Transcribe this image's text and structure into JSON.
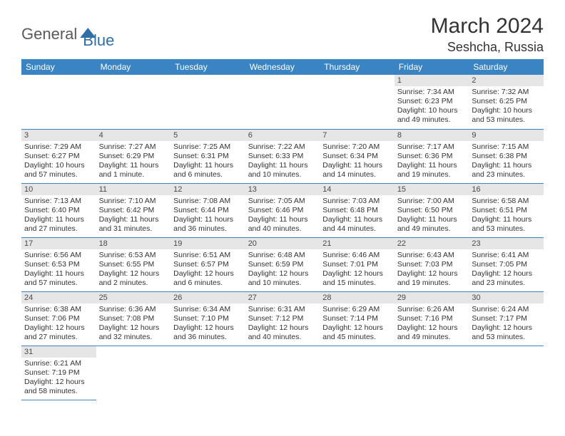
{
  "brand": {
    "part1": "General",
    "part2": "Blue",
    "text_color_1": "#5a5a5a",
    "text_color_2": "#2f6fa8"
  },
  "title": {
    "month": "March 2024",
    "location": "Seshcha, Russia"
  },
  "theme": {
    "header_bg": "#3a84c4",
    "header_text": "#ffffff",
    "daynum_bg": "#e6e6e6",
    "row_border": "#3a84c4",
    "body_text": "#333333"
  },
  "day_headers": [
    "Sunday",
    "Monday",
    "Tuesday",
    "Wednesday",
    "Thursday",
    "Friday",
    "Saturday"
  ],
  "weeks": [
    [
      null,
      null,
      null,
      null,
      null,
      {
        "n": "1",
        "sr": "Sunrise: 7:34 AM",
        "ss": "Sunset: 6:23 PM",
        "d1": "Daylight: 10 hours",
        "d2": "and 49 minutes."
      },
      {
        "n": "2",
        "sr": "Sunrise: 7:32 AM",
        "ss": "Sunset: 6:25 PM",
        "d1": "Daylight: 10 hours",
        "d2": "and 53 minutes."
      }
    ],
    [
      {
        "n": "3",
        "sr": "Sunrise: 7:29 AM",
        "ss": "Sunset: 6:27 PM",
        "d1": "Daylight: 10 hours",
        "d2": "and 57 minutes."
      },
      {
        "n": "4",
        "sr": "Sunrise: 7:27 AM",
        "ss": "Sunset: 6:29 PM",
        "d1": "Daylight: 11 hours",
        "d2": "and 1 minute."
      },
      {
        "n": "5",
        "sr": "Sunrise: 7:25 AM",
        "ss": "Sunset: 6:31 PM",
        "d1": "Daylight: 11 hours",
        "d2": "and 6 minutes."
      },
      {
        "n": "6",
        "sr": "Sunrise: 7:22 AM",
        "ss": "Sunset: 6:33 PM",
        "d1": "Daylight: 11 hours",
        "d2": "and 10 minutes."
      },
      {
        "n": "7",
        "sr": "Sunrise: 7:20 AM",
        "ss": "Sunset: 6:34 PM",
        "d1": "Daylight: 11 hours",
        "d2": "and 14 minutes."
      },
      {
        "n": "8",
        "sr": "Sunrise: 7:17 AM",
        "ss": "Sunset: 6:36 PM",
        "d1": "Daylight: 11 hours",
        "d2": "and 19 minutes."
      },
      {
        "n": "9",
        "sr": "Sunrise: 7:15 AM",
        "ss": "Sunset: 6:38 PM",
        "d1": "Daylight: 11 hours",
        "d2": "and 23 minutes."
      }
    ],
    [
      {
        "n": "10",
        "sr": "Sunrise: 7:13 AM",
        "ss": "Sunset: 6:40 PM",
        "d1": "Daylight: 11 hours",
        "d2": "and 27 minutes."
      },
      {
        "n": "11",
        "sr": "Sunrise: 7:10 AM",
        "ss": "Sunset: 6:42 PM",
        "d1": "Daylight: 11 hours",
        "d2": "and 31 minutes."
      },
      {
        "n": "12",
        "sr": "Sunrise: 7:08 AM",
        "ss": "Sunset: 6:44 PM",
        "d1": "Daylight: 11 hours",
        "d2": "and 36 minutes."
      },
      {
        "n": "13",
        "sr": "Sunrise: 7:05 AM",
        "ss": "Sunset: 6:46 PM",
        "d1": "Daylight: 11 hours",
        "d2": "and 40 minutes."
      },
      {
        "n": "14",
        "sr": "Sunrise: 7:03 AM",
        "ss": "Sunset: 6:48 PM",
        "d1": "Daylight: 11 hours",
        "d2": "and 44 minutes."
      },
      {
        "n": "15",
        "sr": "Sunrise: 7:00 AM",
        "ss": "Sunset: 6:50 PM",
        "d1": "Daylight: 11 hours",
        "d2": "and 49 minutes."
      },
      {
        "n": "16",
        "sr": "Sunrise: 6:58 AM",
        "ss": "Sunset: 6:51 PM",
        "d1": "Daylight: 11 hours",
        "d2": "and 53 minutes."
      }
    ],
    [
      {
        "n": "17",
        "sr": "Sunrise: 6:56 AM",
        "ss": "Sunset: 6:53 PM",
        "d1": "Daylight: 11 hours",
        "d2": "and 57 minutes."
      },
      {
        "n": "18",
        "sr": "Sunrise: 6:53 AM",
        "ss": "Sunset: 6:55 PM",
        "d1": "Daylight: 12 hours",
        "d2": "and 2 minutes."
      },
      {
        "n": "19",
        "sr": "Sunrise: 6:51 AM",
        "ss": "Sunset: 6:57 PM",
        "d1": "Daylight: 12 hours",
        "d2": "and 6 minutes."
      },
      {
        "n": "20",
        "sr": "Sunrise: 6:48 AM",
        "ss": "Sunset: 6:59 PM",
        "d1": "Daylight: 12 hours",
        "d2": "and 10 minutes."
      },
      {
        "n": "21",
        "sr": "Sunrise: 6:46 AM",
        "ss": "Sunset: 7:01 PM",
        "d1": "Daylight: 12 hours",
        "d2": "and 15 minutes."
      },
      {
        "n": "22",
        "sr": "Sunrise: 6:43 AM",
        "ss": "Sunset: 7:03 PM",
        "d1": "Daylight: 12 hours",
        "d2": "and 19 minutes."
      },
      {
        "n": "23",
        "sr": "Sunrise: 6:41 AM",
        "ss": "Sunset: 7:05 PM",
        "d1": "Daylight: 12 hours",
        "d2": "and 23 minutes."
      }
    ],
    [
      {
        "n": "24",
        "sr": "Sunrise: 6:38 AM",
        "ss": "Sunset: 7:06 PM",
        "d1": "Daylight: 12 hours",
        "d2": "and 27 minutes."
      },
      {
        "n": "25",
        "sr": "Sunrise: 6:36 AM",
        "ss": "Sunset: 7:08 PM",
        "d1": "Daylight: 12 hours",
        "d2": "and 32 minutes."
      },
      {
        "n": "26",
        "sr": "Sunrise: 6:34 AM",
        "ss": "Sunset: 7:10 PM",
        "d1": "Daylight: 12 hours",
        "d2": "and 36 minutes."
      },
      {
        "n": "27",
        "sr": "Sunrise: 6:31 AM",
        "ss": "Sunset: 7:12 PM",
        "d1": "Daylight: 12 hours",
        "d2": "and 40 minutes."
      },
      {
        "n": "28",
        "sr": "Sunrise: 6:29 AM",
        "ss": "Sunset: 7:14 PM",
        "d1": "Daylight: 12 hours",
        "d2": "and 45 minutes."
      },
      {
        "n": "29",
        "sr": "Sunrise: 6:26 AM",
        "ss": "Sunset: 7:16 PM",
        "d1": "Daylight: 12 hours",
        "d2": "and 49 minutes."
      },
      {
        "n": "30",
        "sr": "Sunrise: 6:24 AM",
        "ss": "Sunset: 7:17 PM",
        "d1": "Daylight: 12 hours",
        "d2": "and 53 minutes."
      }
    ],
    [
      {
        "n": "31",
        "sr": "Sunrise: 6:21 AM",
        "ss": "Sunset: 7:19 PM",
        "d1": "Daylight: 12 hours",
        "d2": "and 58 minutes."
      },
      null,
      null,
      null,
      null,
      null,
      null
    ]
  ]
}
